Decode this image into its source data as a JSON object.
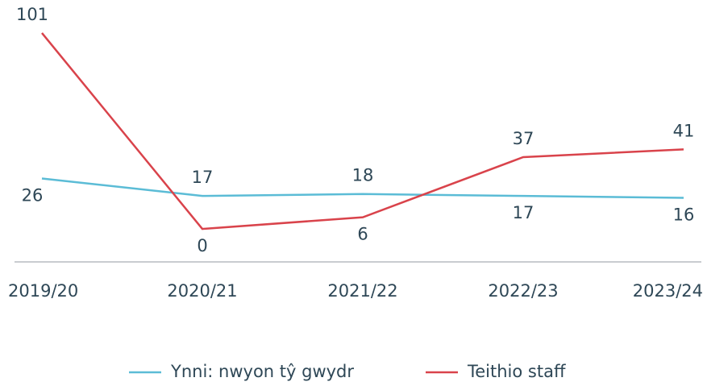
{
  "chart_data": {
    "type": "line",
    "categories": [
      "2019/20",
      "2020/21",
      "2021/22",
      "2022/23",
      "2023/24"
    ],
    "series": [
      {
        "name": "Ynni: nwyon tŷ gwydr",
        "color": "#5bbcd6",
        "values": [
          26,
          17,
          18,
          17,
          16
        ]
      },
      {
        "name": "Teithio staff",
        "color": "#d9434b",
        "values": [
          101,
          0,
          6,
          37,
          41
        ]
      }
    ],
    "ylim": [
      -17,
      118
    ],
    "legend": "bottom"
  }
}
